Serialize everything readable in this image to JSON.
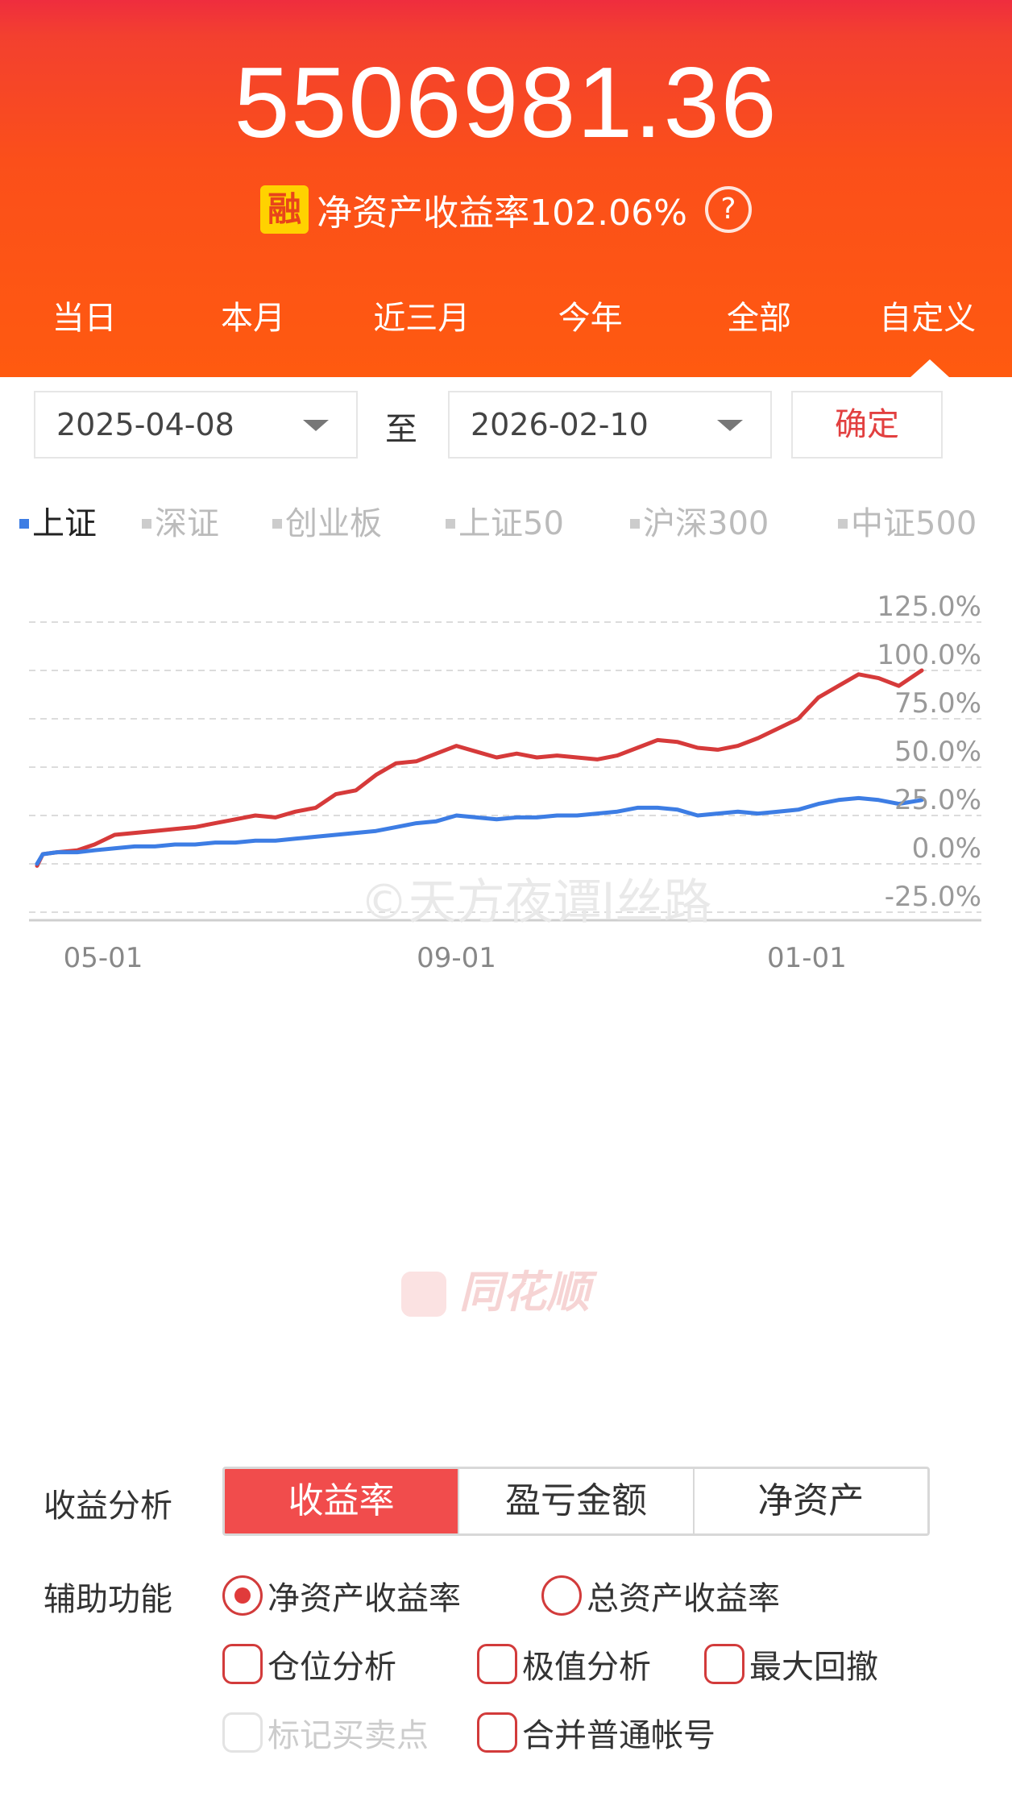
{
  "header": {
    "amount": "5506981.36",
    "badge": "融",
    "rate_label": "净资产收益率102.06%",
    "help_icon": "?",
    "tabs": [
      "当日",
      "本月",
      "近三月",
      "今年",
      "全部",
      "自定义"
    ],
    "selected_tab": "自定义"
  },
  "date_range": {
    "start": "2025-04-08",
    "separator": "至",
    "end": "2026-02-10",
    "confirm": "确定"
  },
  "index_legend": {
    "items": [
      "上证",
      "深证",
      "创业板",
      "上证50",
      "沪深300",
      "中证500"
    ],
    "selected": "上证"
  },
  "watermarks": {
    "copyright": "©天方夜谭l丝路",
    "brand": "同花顺"
  },
  "chart_data": {
    "type": "line",
    "ylim": [
      -25,
      125
    ],
    "y_ticks": [
      "125.0%",
      "100.0%",
      "75.0%",
      "50.0%",
      "25.0%",
      "0.0%",
      "-25.0%"
    ],
    "x_ticks": [
      "05-01",
      "09-01",
      "01-01"
    ],
    "x_range": [
      "2025-04-08",
      "2026-02-10"
    ],
    "grid": true,
    "series": [
      {
        "color": "#d63a3a",
        "points": [
          [
            "2025-04-08",
            -1
          ],
          [
            "2025-04-10",
            5
          ],
          [
            "2025-04-15",
            6
          ],
          [
            "2025-04-22",
            7
          ],
          [
            "2025-04-28",
            10
          ],
          [
            "2025-05-05",
            15
          ],
          [
            "2025-05-12",
            16
          ],
          [
            "2025-05-19",
            17
          ],
          [
            "2025-05-26",
            18
          ],
          [
            "2025-06-02",
            19
          ],
          [
            "2025-06-09",
            21
          ],
          [
            "2025-06-16",
            23
          ],
          [
            "2025-06-23",
            25
          ],
          [
            "2025-06-30",
            24
          ],
          [
            "2025-07-07",
            27
          ],
          [
            "2025-07-14",
            29
          ],
          [
            "2025-07-21",
            36
          ],
          [
            "2025-07-28",
            38
          ],
          [
            "2025-08-04",
            46
          ],
          [
            "2025-08-11",
            52
          ],
          [
            "2025-08-18",
            53
          ],
          [
            "2025-08-25",
            57
          ],
          [
            "2025-09-01",
            61
          ],
          [
            "2025-09-08",
            58
          ],
          [
            "2025-09-15",
            55
          ],
          [
            "2025-09-22",
            57
          ],
          [
            "2025-09-29",
            55
          ],
          [
            "2025-10-06",
            56
          ],
          [
            "2025-10-13",
            55
          ],
          [
            "2025-10-20",
            54
          ],
          [
            "2025-10-27",
            56
          ],
          [
            "2025-11-03",
            60
          ],
          [
            "2025-11-10",
            64
          ],
          [
            "2025-11-17",
            63
          ],
          [
            "2025-11-24",
            60
          ],
          [
            "2025-12-01",
            59
          ],
          [
            "2025-12-08",
            61
          ],
          [
            "2025-12-15",
            65
          ],
          [
            "2025-12-22",
            70
          ],
          [
            "2025-12-29",
            75
          ],
          [
            "2026-01-05",
            86
          ],
          [
            "2026-01-12",
            92
          ],
          [
            "2026-01-19",
            98
          ],
          [
            "2026-01-26",
            96
          ],
          [
            "2026-02-02",
            92
          ],
          [
            "2026-02-10",
            100
          ]
        ]
      },
      {
        "color": "#3d7de4",
        "points": [
          [
            "2025-04-08",
            0
          ],
          [
            "2025-04-10",
            5
          ],
          [
            "2025-04-15",
            6
          ],
          [
            "2025-04-22",
            6
          ],
          [
            "2025-04-28",
            7
          ],
          [
            "2025-05-05",
            8
          ],
          [
            "2025-05-12",
            9
          ],
          [
            "2025-05-19",
            9
          ],
          [
            "2025-05-26",
            10
          ],
          [
            "2025-06-02",
            10
          ],
          [
            "2025-06-09",
            11
          ],
          [
            "2025-06-16",
            11
          ],
          [
            "2025-06-23",
            12
          ],
          [
            "2025-06-30",
            12
          ],
          [
            "2025-07-07",
            13
          ],
          [
            "2025-07-14",
            14
          ],
          [
            "2025-07-21",
            15
          ],
          [
            "2025-07-28",
            16
          ],
          [
            "2025-08-04",
            17
          ],
          [
            "2025-08-11",
            19
          ],
          [
            "2025-08-18",
            21
          ],
          [
            "2025-08-25",
            22
          ],
          [
            "2025-09-01",
            25
          ],
          [
            "2025-09-08",
            24
          ],
          [
            "2025-09-15",
            23
          ],
          [
            "2025-09-22",
            24
          ],
          [
            "2025-09-29",
            24
          ],
          [
            "2025-10-06",
            25
          ],
          [
            "2025-10-13",
            25
          ],
          [
            "2025-10-20",
            26
          ],
          [
            "2025-10-27",
            27
          ],
          [
            "2025-11-03",
            29
          ],
          [
            "2025-11-10",
            29
          ],
          [
            "2025-11-17",
            28
          ],
          [
            "2025-11-24",
            25
          ],
          [
            "2025-12-01",
            26
          ],
          [
            "2025-12-08",
            27
          ],
          [
            "2025-12-15",
            26
          ],
          [
            "2025-12-22",
            27
          ],
          [
            "2025-12-29",
            28
          ],
          [
            "2026-01-05",
            31
          ],
          [
            "2026-01-12",
            33
          ],
          [
            "2026-01-19",
            34
          ],
          [
            "2026-01-26",
            33
          ],
          [
            "2026-02-02",
            31
          ],
          [
            "2026-02-10",
            33
          ]
        ]
      }
    ]
  },
  "analysis": {
    "label": "收益分析",
    "segments": [
      "收益率",
      "盈亏金额",
      "净资产"
    ],
    "selected": "收益率"
  },
  "aux": {
    "label": "辅助功能",
    "radios": [
      "净资产收益率",
      "总资产收益率"
    ],
    "selected_radio": "净资产收益率",
    "checkboxes": [
      "仓位分析",
      "极值分析",
      "最大回撤",
      "标记买卖点",
      "合并普通帐号"
    ],
    "disabled": [
      "标记买卖点"
    ]
  }
}
